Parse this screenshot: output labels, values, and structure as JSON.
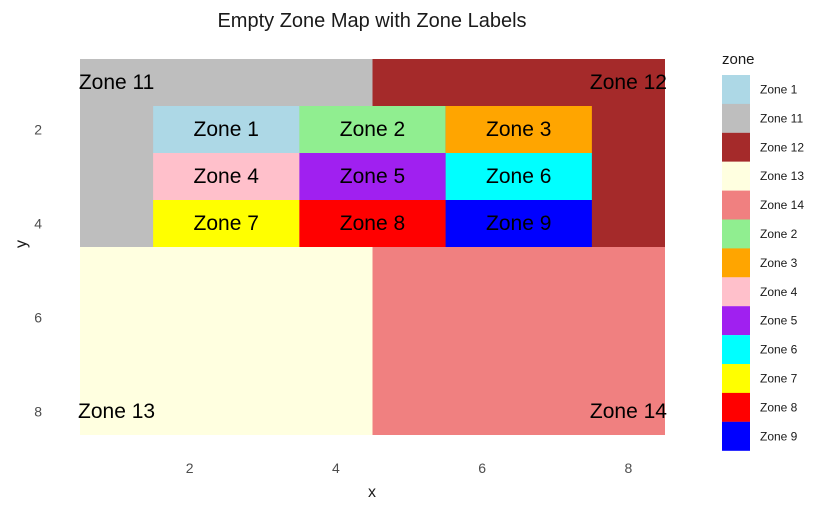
{
  "chart_data": {
    "type": "heatmap",
    "title": "Empty Zone Map with Zone Labels",
    "xlabel": "x",
    "ylabel": "y",
    "xlim": [
      0.5,
      8.5
    ],
    "ylim": [
      0.5,
      8.5
    ],
    "y_reversed": true,
    "x_ticks": [
      "2",
      "4",
      "6",
      "8"
    ],
    "y_ticks": [
      "2",
      "4",
      "6",
      "8"
    ],
    "grid": false,
    "legend_placement": "right",
    "legend_title": "zone",
    "zones": [
      {
        "name": "Zone 11",
        "x0": 0.5,
        "x1": 4.5,
        "y0": 0.5,
        "y1": 4.5,
        "color": "#BEBEBE"
      },
      {
        "name": "Zone 12",
        "x0": 4.5,
        "x1": 8.5,
        "y0": 0.5,
        "y1": 4.5,
        "color": "#A52A2A"
      },
      {
        "name": "Zone 13",
        "x0": 0.5,
        "x1": 4.5,
        "y0": 4.5,
        "y1": 8.5,
        "color": "#FFFFE0"
      },
      {
        "name": "Zone 14",
        "x0": 4.5,
        "x1": 8.5,
        "y0": 4.5,
        "y1": 8.5,
        "color": "#F08080"
      },
      {
        "name": "Zone 1",
        "x0": 1.5,
        "x1": 3.5,
        "y0": 1.5,
        "y1": 2.5,
        "color": "#ADD8E6"
      },
      {
        "name": "Zone 2",
        "x0": 3.5,
        "x1": 5.5,
        "y0": 1.5,
        "y1": 2.5,
        "color": "#90EE90"
      },
      {
        "name": "Zone 3",
        "x0": 5.5,
        "x1": 7.5,
        "y0": 1.5,
        "y1": 2.5,
        "color": "#FFA500"
      },
      {
        "name": "Zone 4",
        "x0": 1.5,
        "x1": 3.5,
        "y0": 2.5,
        "y1": 3.5,
        "color": "#FFC0CB"
      },
      {
        "name": "Zone 5",
        "x0": 3.5,
        "x1": 5.5,
        "y0": 2.5,
        "y1": 3.5,
        "color": "#A020F0"
      },
      {
        "name": "Zone 6",
        "x0": 5.5,
        "x1": 7.5,
        "y0": 2.5,
        "y1": 3.5,
        "color": "#00FFFF"
      },
      {
        "name": "Zone 7",
        "x0": 1.5,
        "x1": 3.5,
        "y0": 3.5,
        "y1": 4.5,
        "color": "#FFFF00"
      },
      {
        "name": "Zone 8",
        "x0": 3.5,
        "x1": 5.5,
        "y0": 3.5,
        "y1": 4.5,
        "color": "#FF0000"
      },
      {
        "name": "Zone 9",
        "x0": 5.5,
        "x1": 7.5,
        "y0": 3.5,
        "y1": 4.5,
        "color": "#0000FF"
      }
    ],
    "labels": [
      {
        "text": "Zone 1",
        "x": 2.5,
        "y": 2
      },
      {
        "text": "Zone 2",
        "x": 4.5,
        "y": 2
      },
      {
        "text": "Zone 3",
        "x": 6.5,
        "y": 2
      },
      {
        "text": "Zone 4",
        "x": 2.5,
        "y": 3
      },
      {
        "text": "Zone 5",
        "x": 4.5,
        "y": 3
      },
      {
        "text": "Zone 6",
        "x": 6.5,
        "y": 3
      },
      {
        "text": "Zone 7",
        "x": 2.5,
        "y": 4
      },
      {
        "text": "Zone 8",
        "x": 4.5,
        "y": 4
      },
      {
        "text": "Zone 9",
        "x": 6.5,
        "y": 4
      },
      {
        "text": "Zone 11",
        "x": 1,
        "y": 1
      },
      {
        "text": "Zone 12",
        "x": 8,
        "y": 1
      },
      {
        "text": "Zone 13",
        "x": 1,
        "y": 8
      },
      {
        "text": "Zone 14",
        "x": 8,
        "y": 8
      }
    ],
    "legend": [
      {
        "label": "Zone 1",
        "color": "#ADD8E6"
      },
      {
        "label": "Zone 11",
        "color": "#BEBEBE"
      },
      {
        "label": "Zone 12",
        "color": "#A52A2A"
      },
      {
        "label": "Zone 13",
        "color": "#FFFFE0"
      },
      {
        "label": "Zone 14",
        "color": "#F08080"
      },
      {
        "label": "Zone 2",
        "color": "#90EE90"
      },
      {
        "label": "Zone 3",
        "color": "#FFA500"
      },
      {
        "label": "Zone 4",
        "color": "#FFC0CB"
      },
      {
        "label": "Zone 5",
        "color": "#A020F0"
      },
      {
        "label": "Zone 6",
        "color": "#00FFFF"
      },
      {
        "label": "Zone 7",
        "color": "#FFFF00"
      },
      {
        "label": "Zone 8",
        "color": "#FF0000"
      },
      {
        "label": "Zone 9",
        "color": "#0000FF"
      }
    ]
  }
}
